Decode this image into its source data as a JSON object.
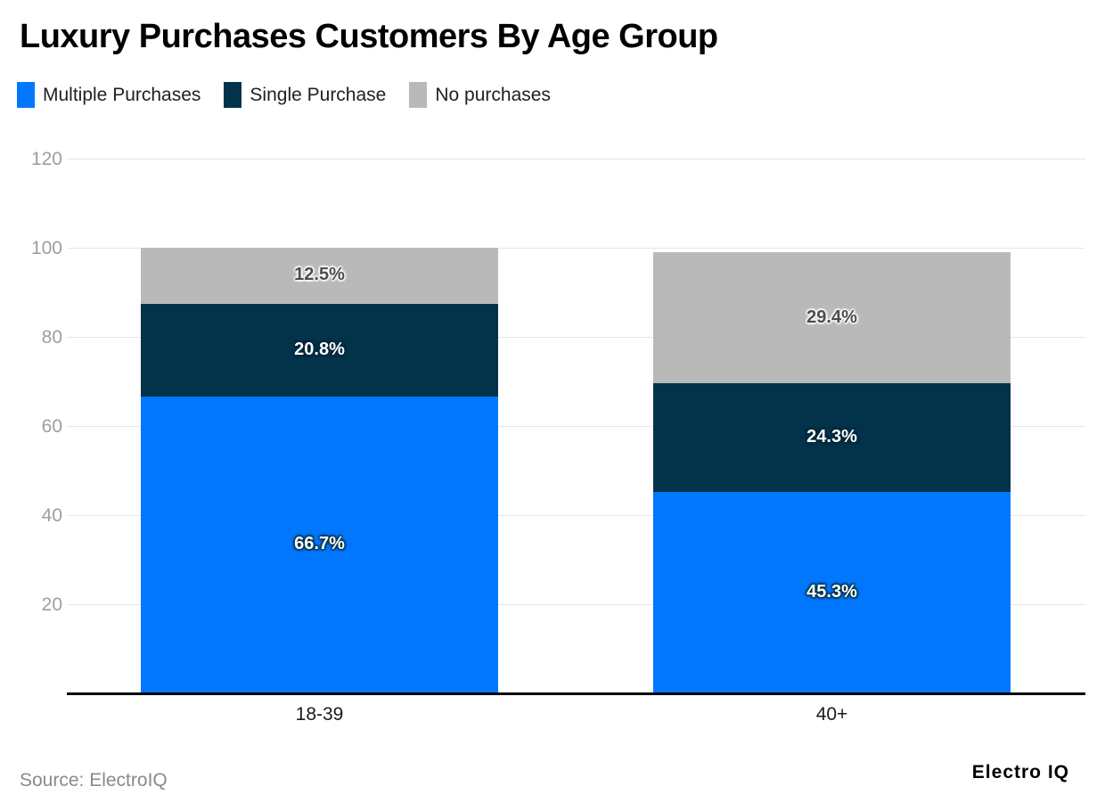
{
  "header": {
    "title": "Luxury Purchases Customers By Age Group"
  },
  "footer": {
    "source": "Source: ElectroIQ",
    "brand": "Electro IQ"
  },
  "chart_data": {
    "type": "bar",
    "variant": "stacked-vertical",
    "title": "Luxury Purchases Customers By Age Group",
    "categories": [
      "18-39",
      "40+"
    ],
    "series": [
      {
        "name": "Multiple Purchases",
        "color": "#0177fd",
        "label_color": "#ffffff",
        "label_halo": "#02334a",
        "values": [
          66.7,
          45.3
        ]
      },
      {
        "name": "Single Purchase",
        "color": "#02334a",
        "label_color": "#ffffff",
        "label_halo": "#01283a",
        "values": [
          20.8,
          24.3
        ]
      },
      {
        "name": "No purchases",
        "color": "#b9b9b9",
        "label_color": "#4d4d4d",
        "label_halo": "#ffffff",
        "values": [
          12.5,
          29.4
        ]
      }
    ],
    "value_suffix": "%",
    "y_ticks": [
      20,
      40,
      60,
      80,
      100,
      120
    ],
    "ylim": [
      0,
      120
    ],
    "grid": true,
    "legend_position": "top-left",
    "colors": {
      "gridline": "#e6e6e6",
      "axis_line": "#000000",
      "tick_label": "#9e9e9e",
      "category_label": "#1a1a1a",
      "background": "#ffffff"
    }
  }
}
